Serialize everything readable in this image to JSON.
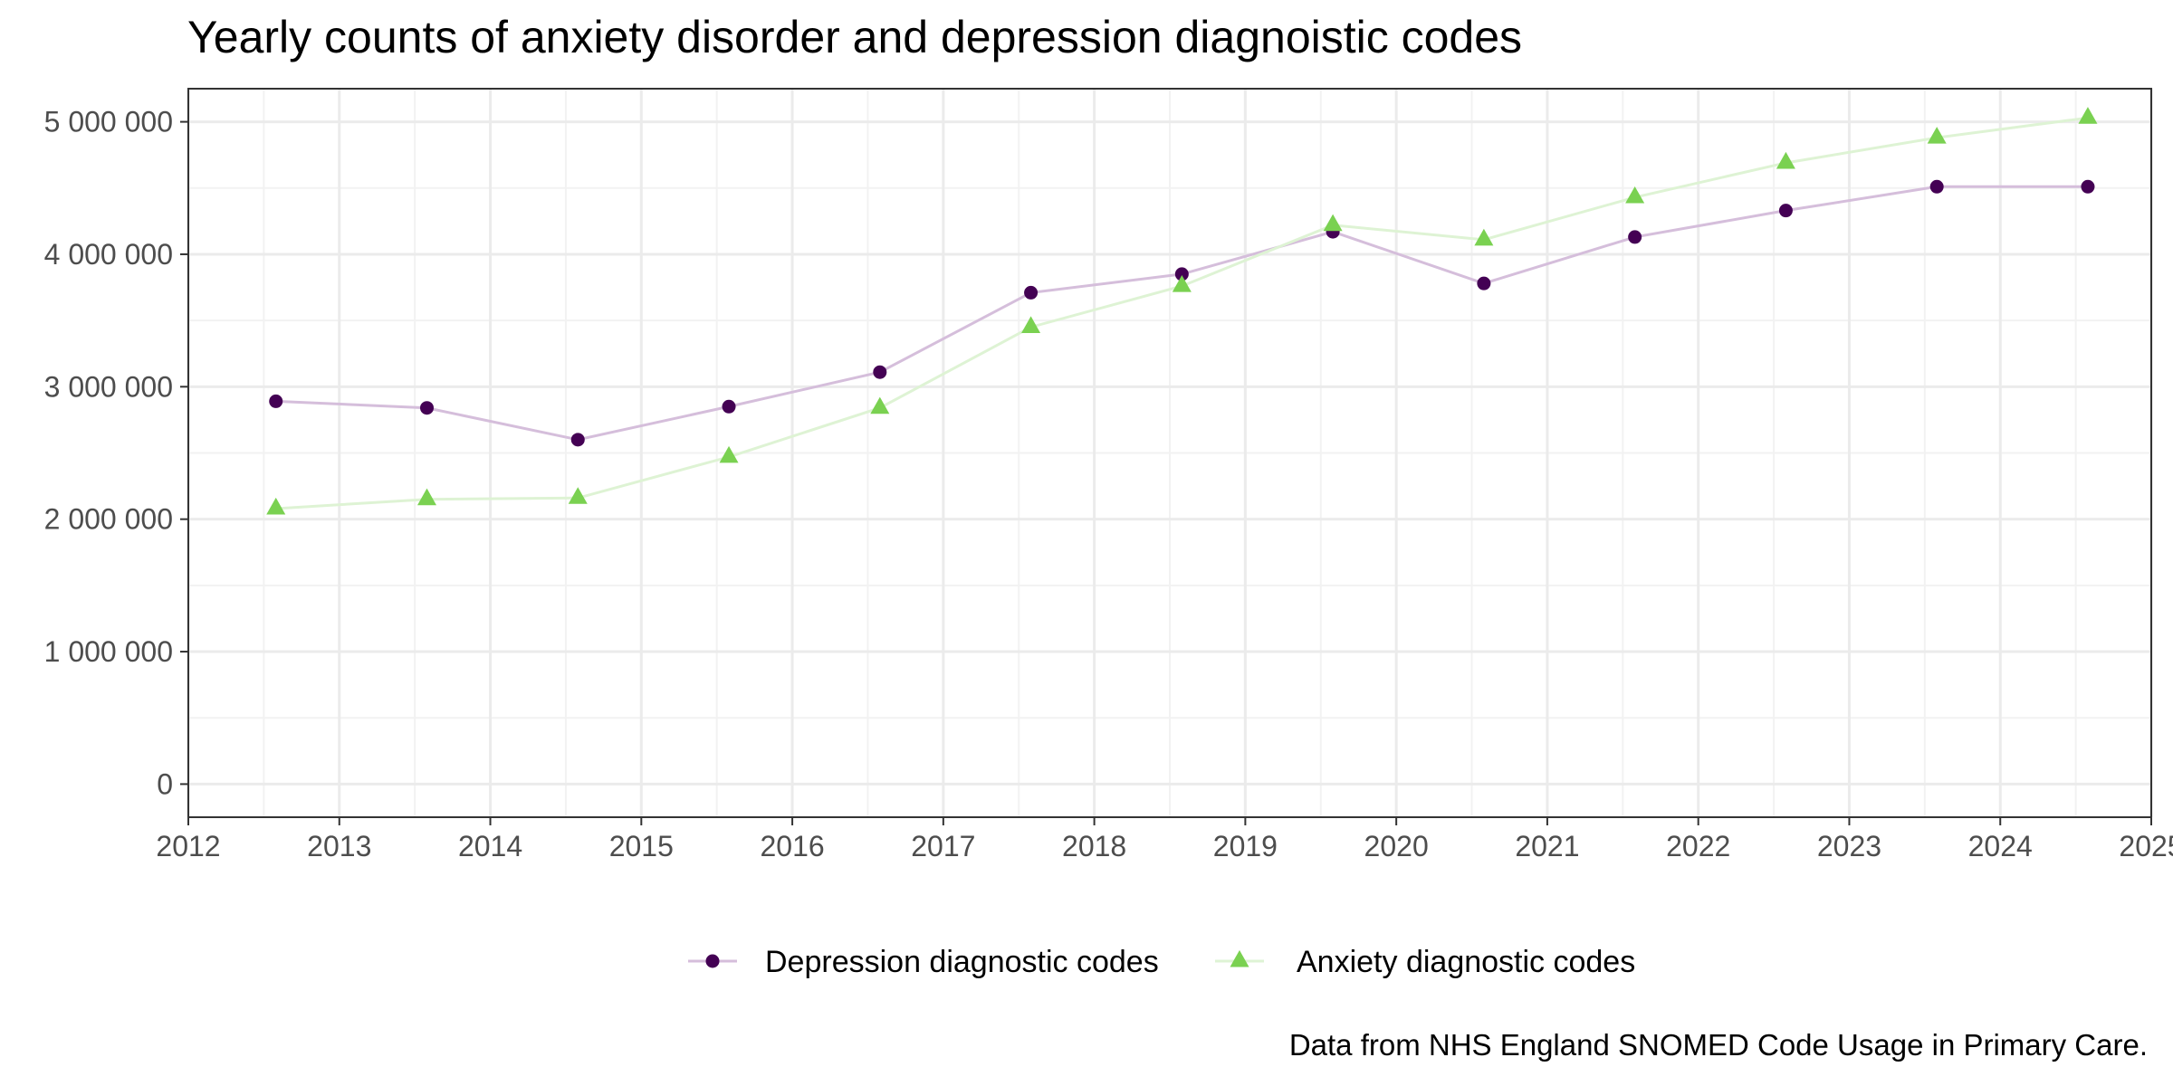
{
  "chart_data": {
    "type": "line",
    "title": "Yearly counts of anxiety disorder and depression diagnoistic codes",
    "caption": "Data from NHS England SNOMED Code Usage in Primary Care.",
    "xlabel": "",
    "ylabel": "",
    "xlim": [
      2012,
      2025
    ],
    "ylim": [
      -250000,
      5250000
    ],
    "x_ticks": [
      2012,
      2013,
      2014,
      2015,
      2016,
      2017,
      2018,
      2019,
      2020,
      2021,
      2022,
      2023,
      2024,
      2025
    ],
    "x_tick_labels": [
      "2012",
      "2013",
      "2014",
      "2015",
      "2016",
      "2017",
      "2018",
      "2019",
      "2020",
      "2021",
      "2022",
      "2023",
      "2024",
      "2025"
    ],
    "y_ticks": [
      0,
      1000000,
      2000000,
      3000000,
      4000000,
      5000000
    ],
    "y_tick_labels": [
      "0",
      "1 000 000",
      "2 000 000",
      "3 000 000",
      "4 000 000",
      "5 000 000"
    ],
    "grid": true,
    "legend_position": "bottom",
    "x": [
      2012.58,
      2013.58,
      2014.58,
      2015.58,
      2016.58,
      2017.58,
      2018.58,
      2019.58,
      2020.58,
      2021.58,
      2022.58,
      2023.58,
      2024.58
    ],
    "series": [
      {
        "name": "Depression diagnostic codes",
        "marker": "circle",
        "point_color": "#440154",
        "line_color": "#d5bedb",
        "values": [
          2890000,
          2840000,
          2600000,
          2850000,
          3110000,
          3710000,
          3850000,
          4170000,
          3780000,
          4130000,
          4330000,
          4510000,
          4510000
        ]
      },
      {
        "name": "Anxiety diagnostic codes",
        "marker": "triangle",
        "point_color": "#7ad151",
        "line_color": "#def3d4",
        "values": [
          2080000,
          2150000,
          2160000,
          2470000,
          2840000,
          3450000,
          3760000,
          4220000,
          4110000,
          4430000,
          4690000,
          4880000,
          5030000
        ]
      }
    ]
  }
}
